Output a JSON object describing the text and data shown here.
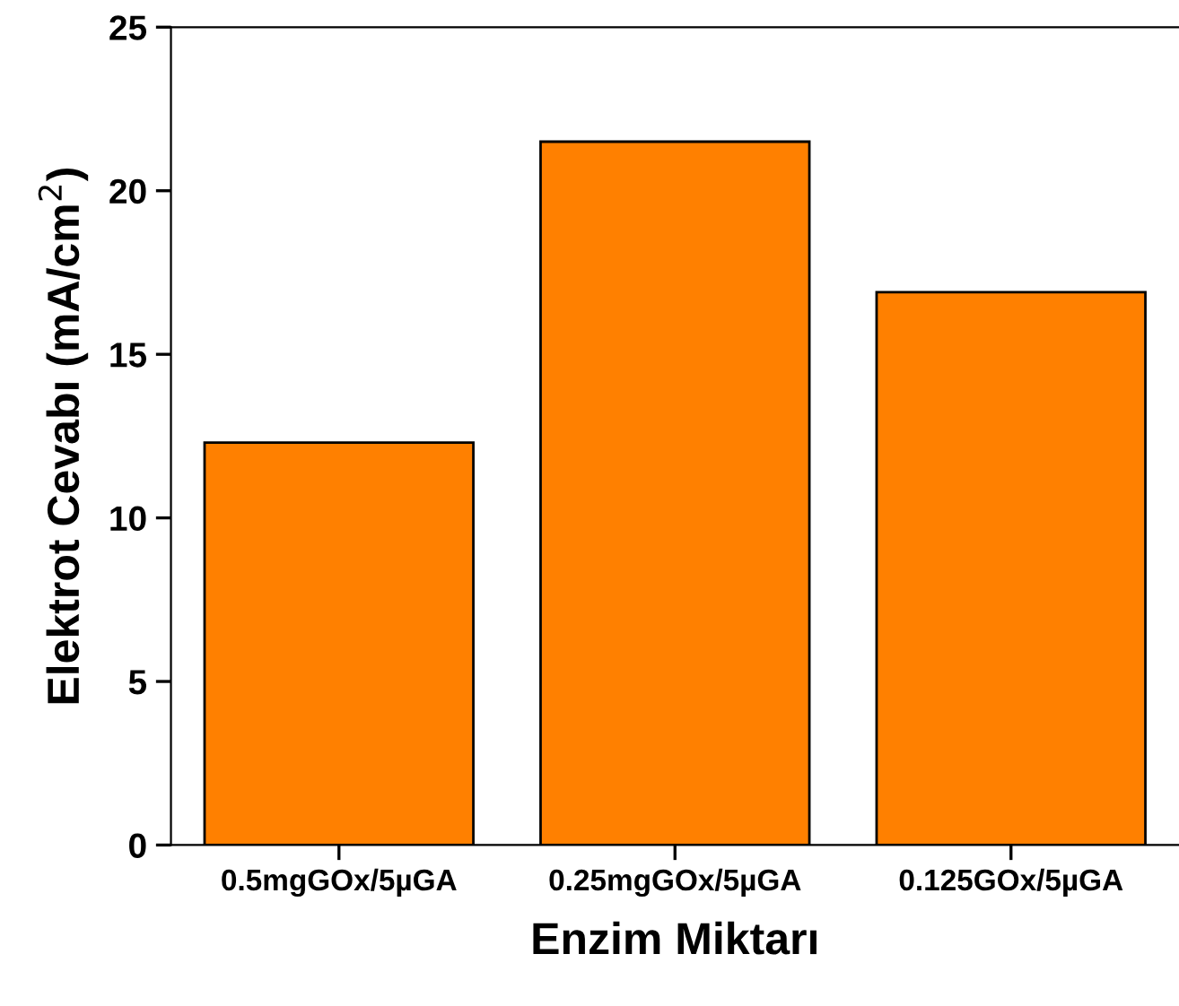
{
  "chart_data": {
    "type": "bar",
    "xlabel": "Enzim Miktarı",
    "ylabel": "Elektrot Cevabı (mA/cm$^{2}$)",
    "categories": [
      "0.5mgGOx/5µGA",
      "0.25mgGOx/5µGA",
      "0.125GOx/5µGA"
    ],
    "values": [
      12.3,
      21.5,
      16.9
    ],
    "color": "#ff8000",
    "ylim": [
      0,
      25
    ],
    "yticks": [
      0,
      5,
      10,
      15,
      20,
      25
    ],
    "grid": false,
    "legend": false
  }
}
